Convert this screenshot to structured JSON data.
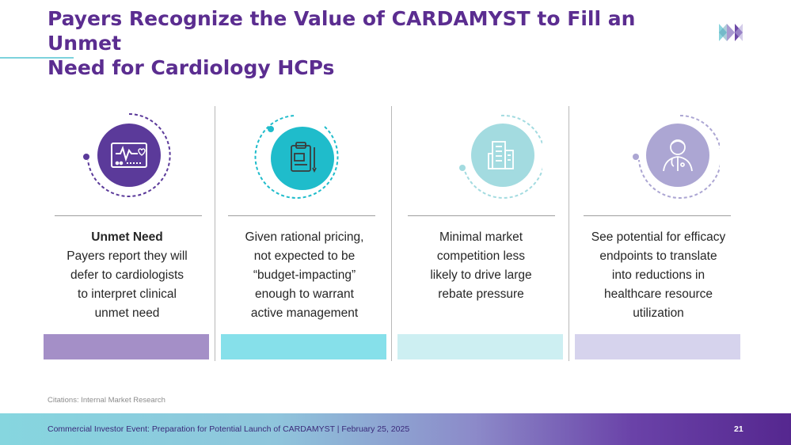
{
  "slide": {
    "title_line1": "Payers Recognize the Value of CARDAMYST to Fill an Unmet",
    "title_line2": "Need for Cardiology HCPs"
  },
  "columns": [
    {
      "icon": "heart-monitor-icon",
      "heading": "Unmet Need",
      "lines": [
        "Payers report they will",
        "defer to cardiologists",
        "to interpret clinical",
        "unmet need"
      ],
      "color": "#5b3a9a",
      "bar_color": "#a48fc7"
    },
    {
      "icon": "clipboard-icon",
      "heading": "",
      "lines": [
        "Given rational pricing,",
        "not expected to be",
        "“budget-impacting”",
        "enough to warrant",
        "active management"
      ],
      "color": "#1fbccb",
      "bar_color": "#86e0ea"
    },
    {
      "icon": "buildings-icon",
      "heading": "",
      "lines": [
        "Minimal market",
        "competition less",
        "likely to drive large",
        "rebate pressure"
      ],
      "color": "#a3dbe0",
      "bar_color": "#cdeff2"
    },
    {
      "icon": "doctor-icon",
      "heading": "",
      "lines": [
        "See potential for efficacy",
        "endpoints to translate",
        "into reductions in",
        "healthcare resource",
        "utilization"
      ],
      "color": "#aca6d3",
      "bar_color": "#d6d3ed"
    }
  ],
  "citation": "Citations: Internal Market Research",
  "footer": {
    "text": "Commercial Investor Event: Preparation for Potential Launch of CARDAMYST | February 25, 2025",
    "page_number": "21"
  }
}
